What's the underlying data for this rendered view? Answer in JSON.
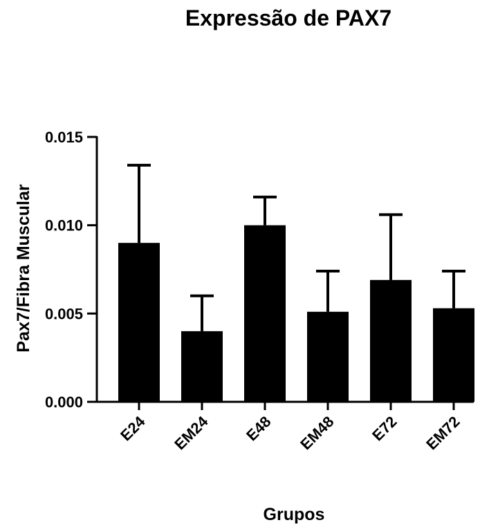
{
  "chart_data": {
    "type": "bar",
    "title": "Expressão de PAX7",
    "xlabel": "Grupos",
    "ylabel": "Pax7/Fibra Muscular",
    "categories": [
      "E24",
      "EM24",
      "E48",
      "EM48",
      "E72",
      "EM72"
    ],
    "values": [
      0.009,
      0.004,
      0.01,
      0.0051,
      0.0069,
      0.0053
    ],
    "error_upper": [
      0.0134,
      0.006,
      0.0116,
      0.0074,
      0.0106,
      0.0074
    ],
    "yticks": [
      "0.000",
      "0.005",
      "0.010",
      "0.015"
    ],
    "ytick_values": [
      0,
      0.005,
      0.01,
      0.015
    ],
    "ylim": [
      0,
      0.015
    ],
    "grid": false,
    "bar_color": "#000000"
  }
}
